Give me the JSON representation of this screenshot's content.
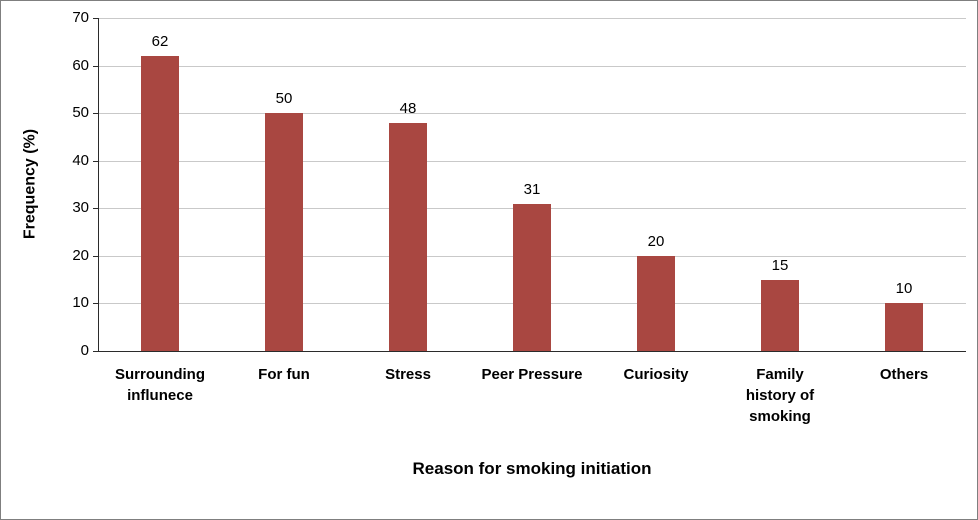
{
  "chart_data": {
    "type": "bar",
    "title": "",
    "categories": [
      "Surrounding influnece",
      "For fun",
      "Stress",
      "Peer Pressure",
      "Curiosity",
      "Family history of smoking",
      "Others"
    ],
    "category_labels_wrapped": [
      [
        "Surrounding",
        "influnece"
      ],
      [
        "For fun"
      ],
      [
        "Stress"
      ],
      [
        "Peer Pressure"
      ],
      [
        "Curiosity"
      ],
      [
        "Family",
        "history of",
        "smoking"
      ],
      [
        "Others"
      ]
    ],
    "values": [
      62,
      50,
      48,
      31,
      20,
      15,
      10
    ],
    "data_labels": [
      "62",
      "50",
      "48",
      "31",
      "20",
      "15",
      "10"
    ],
    "xlabel": "Reason for smoking initiation",
    "ylabel": "Frequency (%)",
    "ylim": [
      0,
      70
    ],
    "yticks": [
      0,
      10,
      20,
      30,
      40,
      50,
      60,
      70
    ],
    "grid": true,
    "legend": false,
    "bar_color": "#a94741",
    "grid_color": "#c9c9c9",
    "axis_color": "#2b2b2b",
    "frame_color": "#7f7f7f"
  }
}
